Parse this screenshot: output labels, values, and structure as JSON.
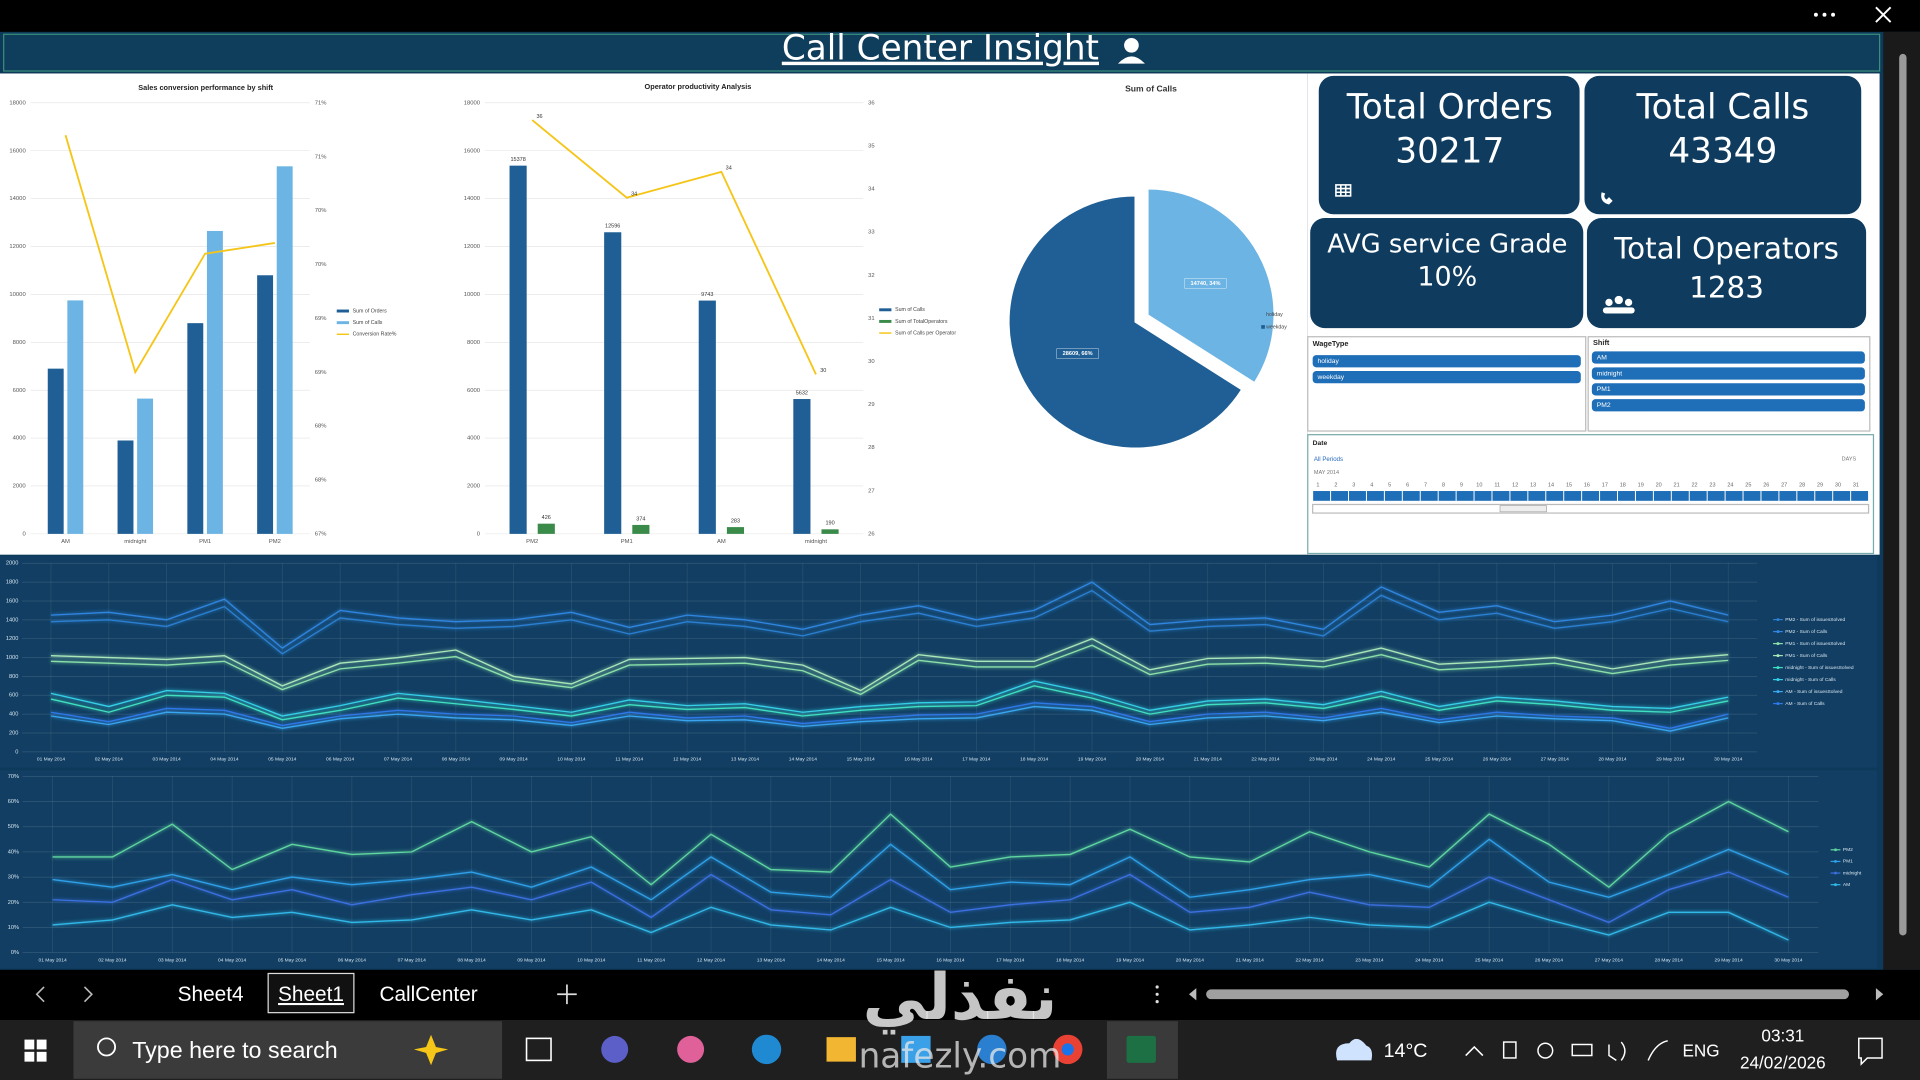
{
  "header": {
    "title": "Call Center Insight"
  },
  "kpis": [
    {
      "label": "Total Orders",
      "value": 30217
    },
    {
      "label": "Total Calls",
      "value": 43349
    },
    {
      "label": "AVG service Grade",
      "value": "10%"
    },
    {
      "label": "Total Operators",
      "value": 1283
    }
  ],
  "slicers": {
    "wage_type": {
      "title": "WageType",
      "items": [
        "holiday",
        "weekday"
      ]
    },
    "shift": {
      "title": "Shift",
      "items": [
        "AM",
        "midnight",
        "PM1",
        "PM2"
      ]
    },
    "date": {
      "title": "Date",
      "period": "All Periods",
      "month": "MAY 2014",
      "level": "DAYS",
      "days": [
        1,
        2,
        3,
        4,
        5,
        6,
        7,
        8,
        9,
        10,
        11,
        12,
        13,
        14,
        15,
        16,
        17,
        18,
        19,
        20,
        21,
        22,
        23,
        24,
        25,
        26,
        27,
        28,
        29,
        30,
        31
      ]
    }
  },
  "chart_data": [
    {
      "type": "bar",
      "title": "Sales conversion performance by shift",
      "categories": [
        "AM",
        "midnight",
        "PM1",
        "PM2"
      ],
      "series": [
        {
          "name": "Sum of Orders",
          "color": "#1f5f95",
          "values": [
            6900,
            3900,
            8800,
            10800
          ]
        },
        {
          "name": "Sum of Calls",
          "color": "#6cb4e4",
          "values": [
            9750,
            5650,
            12650,
            15350
          ]
        },
        {
          "name": "Conversion Rate%",
          "type": "line",
          "axis": "y2",
          "color": "#f5c518",
          "values": [
            70.7,
            68.5,
            69.6,
            69.7
          ]
        }
      ],
      "ylim": [
        0,
        18000
      ],
      "yticks": [
        0,
        2000,
        4000,
        6000,
        8000,
        10000,
        12000,
        14000,
        16000,
        18000
      ],
      "y2lim": [
        67,
        71
      ],
      "y2ticks": [
        {
          "value": 67,
          "label": "67%"
        },
        {
          "value": 67.5,
          "label": "68%"
        },
        {
          "value": 68,
          "label": "68%"
        },
        {
          "value": 68.5,
          "label": "69%"
        },
        {
          "value": 69,
          "label": "69%"
        },
        {
          "value": 69.5,
          "label": "70%"
        },
        {
          "value": 70,
          "label": "70%"
        },
        {
          "value": 70.5,
          "label": "71%"
        },
        {
          "value": 71,
          "label": "71%"
        }
      ],
      "grid": true,
      "legend": "right"
    },
    {
      "type": "bar",
      "title": "Operator productivity Analysis",
      "categories": [
        "PM2",
        "PM1",
        "AM",
        "midnight"
      ],
      "series": [
        {
          "name": "Sum of Calls",
          "color": "#1f5f95",
          "values": [
            15378,
            12596,
            9743,
            5632
          ]
        },
        {
          "name": "Sum of TotalOperators",
          "color": "#3a8a4a",
          "values": [
            426,
            374,
            283,
            190
          ]
        },
        {
          "name": "Sum of Calls per Operator",
          "type": "line",
          "axis": "y2",
          "color": "#f5c518",
          "values": [
            35.6,
            33.8,
            34.4,
            29.7
          ],
          "value_labels": [
            "36",
            "34",
            "34",
            "30"
          ]
        }
      ],
      "ylim": [
        0,
        18000
      ],
      "yticks": [
        0,
        2000,
        4000,
        6000,
        8000,
        10000,
        12000,
        14000,
        16000,
        18000
      ],
      "y2lim": [
        26,
        36
      ],
      "y2ticks": [
        26,
        27,
        28,
        29,
        30,
        31,
        32,
        33,
        34,
        35,
        36
      ],
      "grid": true,
      "data_labels": true,
      "legend": "right"
    },
    {
      "type": "pie",
      "title": "Sum of Calls",
      "categories": [
        "holiday",
        "weekday"
      ],
      "values": [
        14740,
        28609
      ],
      "value_labels": [
        "14740, 34%",
        "28609, 66%"
      ],
      "colors": [
        "#6cb4e4",
        "#1f5f95"
      ],
      "legend": "right"
    },
    {
      "type": "line",
      "categories": [
        "01 May 2014",
        "02 May 2014",
        "03 May 2014",
        "04 May 2014",
        "05 May 2014",
        "06 May 2014",
        "07 May 2014",
        "08 May 2014",
        "09 May 2014",
        "10 May 2014",
        "11 May 2014",
        "12 May 2014",
        "13 May 2014",
        "14 May 2014",
        "15 May 2014",
        "16 May 2014",
        "17 May 2014",
        "18 May 2014",
        "19 May 2014",
        "20 May 2014",
        "21 May 2014",
        "22 May 2014",
        "23 May 2014",
        "24 May 2014",
        "25 May 2014",
        "26 May 2014",
        "27 May 2014",
        "28 May 2014",
        "29 May 2014",
        "30 May 2014"
      ],
      "series": [
        {
          "name": "PM2 - Sum of issuesSolved",
          "color": "#2a7fd0",
          "values": [
            1380,
            1400,
            1330,
            1540,
            1040,
            1420,
            1350,
            1310,
            1330,
            1400,
            1250,
            1380,
            1330,
            1230,
            1380,
            1470,
            1330,
            1420,
            1710,
            1280,
            1330,
            1350,
            1230,
            1660,
            1400,
            1470,
            1310,
            1380,
            1520,
            1380
          ]
        },
        {
          "name": "PM2 - Sum of Calls",
          "color": "#2f86e0",
          "values": [
            1450,
            1480,
            1400,
            1620,
            1100,
            1500,
            1420,
            1380,
            1400,
            1480,
            1320,
            1450,
            1400,
            1300,
            1450,
            1550,
            1400,
            1500,
            1800,
            1350,
            1400,
            1420,
            1300,
            1750,
            1480,
            1550,
            1380,
            1450,
            1600,
            1450
          ]
        },
        {
          "name": "PM1 - Sum of issuesSolved",
          "color": "#8ae0a8",
          "values": [
            960,
            940,
            920,
            960,
            660,
            880,
            940,
            1010,
            760,
            680,
            920,
            930,
            940,
            860,
            610,
            970,
            900,
            900,
            1130,
            820,
            930,
            940,
            900,
            1030,
            870,
            900,
            940,
            830,
            920,
            970
          ]
        },
        {
          "name": "PM1 - Sum of Calls",
          "color": "#a8e8b8",
          "values": [
            1020,
            1000,
            980,
            1020,
            700,
            940,
            1000,
            1080,
            800,
            720,
            980,
            990,
            1000,
            920,
            650,
            1030,
            960,
            960,
            1200,
            870,
            990,
            1000,
            960,
            1100,
            930,
            960,
            1000,
            880,
            980,
            1030
          ]
        },
        {
          "name": "midnight - Sum of issuesSolved",
          "color": "#40e0c0",
          "values": [
            560,
            420,
            600,
            580,
            340,
            440,
            570,
            510,
            450,
            380,
            500,
            450,
            470,
            380,
            440,
            480,
            490,
            700,
            570,
            400,
            500,
            520,
            460,
            590,
            440,
            540,
            500,
            440,
            420,
            540
          ]
        },
        {
          "name": "midnight - Sum of Calls",
          "color": "#35d0e8",
          "values": [
            620,
            480,
            650,
            620,
            380,
            490,
            620,
            560,
            490,
            420,
            550,
            490,
            510,
            420,
            480,
            520,
            530,
            750,
            620,
            440,
            540,
            560,
            500,
            640,
            480,
            580,
            540,
            480,
            460,
            580
          ]
        },
        {
          "name": "AM - Sum of issuesSolved",
          "color": "#3aa8f0",
          "values": [
            380,
            290,
            420,
            400,
            250,
            350,
            400,
            360,
            340,
            280,
            380,
            330,
            340,
            270,
            320,
            350,
            360,
            480,
            440,
            290,
            360,
            380,
            330,
            420,
            310,
            380,
            350,
            330,
            220,
            360
          ]
        },
        {
          "name": "AM - Sum of Calls",
          "color": "#2e78e8",
          "values": [
            420,
            320,
            460,
            440,
            280,
            380,
            440,
            400,
            380,
            310,
            420,
            360,
            380,
            300,
            350,
            390,
            400,
            520,
            480,
            320,
            400,
            420,
            360,
            460,
            340,
            420,
            380,
            360,
            250,
            400
          ]
        }
      ],
      "ylim": [
        0,
        2000
      ],
      "yticks": [
        0,
        200,
        400,
        600,
        800,
        1000,
        1200,
        1400,
        1600,
        1800,
        2000
      ],
      "grid": true,
      "legend": "right"
    },
    {
      "type": "line",
      "categories": [
        "01 May 2014",
        "02 May 2014",
        "03 May 2014",
        "04 May 2014",
        "05 May 2014",
        "06 May 2014",
        "07 May 2014",
        "08 May 2014",
        "09 May 2014",
        "10 May 2014",
        "11 May 2014",
        "12 May 2014",
        "13 May 2014",
        "14 May 2014",
        "15 May 2014",
        "16 May 2014",
        "17 May 2014",
        "18 May 2014",
        "19 May 2014",
        "20 May 2014",
        "21 May 2014",
        "22 May 2014",
        "23 May 2014",
        "24 May 2014",
        "25 May 2014",
        "26 May 2014",
        "27 May 2014",
        "28 May 2014",
        "29 May 2014",
        "30 May 2014"
      ],
      "series": [
        {
          "name": "PM2",
          "color": "#5ed6a0",
          "values": [
            38,
            38,
            51,
            33,
            43,
            39,
            40,
            52,
            40,
            46,
            27,
            47,
            33,
            32,
            55,
            34,
            38,
            39,
            49,
            38,
            36,
            48,
            40,
            34,
            55,
            43,
            26,
            47,
            60,
            48
          ]
        },
        {
          "name": "PM1",
          "color": "#2fa0e8",
          "values": [
            29,
            26,
            31,
            25,
            30,
            27,
            29,
            32,
            26,
            34,
            21,
            38,
            24,
            22,
            43,
            25,
            28,
            27,
            38,
            22,
            25,
            29,
            31,
            26,
            45,
            28,
            22,
            31,
            41,
            31
          ]
        },
        {
          "name": "midnight",
          "color": "#3a70e0",
          "values": [
            21,
            20,
            29,
            21,
            25,
            19,
            23,
            26,
            21,
            28,
            14,
            31,
            17,
            15,
            29,
            16,
            19,
            21,
            31,
            16,
            18,
            24,
            19,
            18,
            30,
            21,
            12,
            25,
            32,
            22
          ]
        },
        {
          "name": "AM",
          "color": "#30b8e8",
          "values": [
            11,
            13,
            19,
            14,
            16,
            12,
            13,
            17,
            13,
            17,
            8,
            18,
            11,
            9,
            18,
            10,
            12,
            13,
            20,
            9,
            11,
            14,
            11,
            10,
            20,
            13,
            7,
            16,
            16,
            5
          ]
        }
      ],
      "ylim": [
        0,
        70
      ],
      "yticks": [
        {
          "value": 0,
          "label": "0%"
        },
        {
          "value": 10,
          "label": "10%"
        },
        {
          "value": 20,
          "label": "20%"
        },
        {
          "value": 30,
          "label": "30%"
        },
        {
          "value": 40,
          "label": "40%"
        },
        {
          "value": 50,
          "label": "50%"
        },
        {
          "value": 60,
          "label": "60%"
        },
        {
          "value": 70,
          "label": "70%"
        }
      ],
      "grid": true,
      "legend": "right"
    }
  ],
  "sheet_tabs": [
    "Sheet4",
    "Sheet1",
    "CallCenter"
  ],
  "active_tab": 1,
  "taskbar": {
    "search": "Type here to search",
    "weather": "14°C",
    "language": "ENG",
    "time": "03:31",
    "date": "24/02/2026"
  },
  "watermark": {
    "arabic": "نفذلي",
    "latin": "nafezly.com"
  }
}
